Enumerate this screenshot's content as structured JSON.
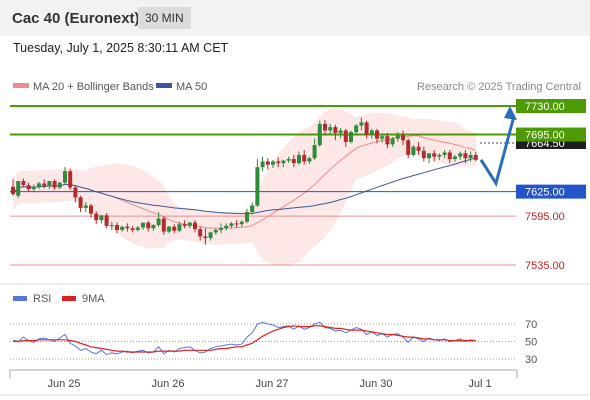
{
  "header": {
    "title": "Cac 40 (Euronext)",
    "timeframe": "30 MIN"
  },
  "datetime": "Tuesday, July 1, 2025 8:30:11 AM CET",
  "source": "Research © 2025 Trading Central",
  "colors": {
    "bollinger": "#f08a8a",
    "ma50": "#3b5998",
    "resistance": "#4e9a06",
    "support": "#2255cc",
    "lower": "#e89090",
    "arrow": "#2a6ebb",
    "rsi": "#5577dd",
    "rsi_ma": "#dd2222"
  },
  "chart_data": [
    {
      "type": "candlestick",
      "legend": [
        {
          "name": "MA 20 + Bollinger Bands",
          "color": "#f08a8a"
        },
        {
          "name": "MA 50",
          "color": "#3b5998"
        }
      ],
      "x_labels": [
        "Jun 25",
        "Jun 26",
        "Jun 27",
        "Jun 30",
        "Jul 1"
      ],
      "current_price_label": "7664.50",
      "levels": [
        {
          "value": 7730.0,
          "label": "7730.00",
          "kind": "resistance"
        },
        {
          "value": 7695.0,
          "label": "7695.00",
          "kind": "resistance"
        },
        {
          "value": 7625.0,
          "label": "7625.00",
          "kind": "support"
        },
        {
          "value": 7595.0,
          "label": "7595.00",
          "kind": "lower"
        },
        {
          "value": 7535.0,
          "label": "7535.00",
          "kind": "lower"
        }
      ],
      "forecast_path": [
        [
          0,
          7664
        ],
        [
          1,
          7645
        ],
        [
          2,
          7730
        ]
      ],
      "candles": [
        [
          7631,
          7640,
          7622,
          7620
        ],
        [
          7620,
          7625,
          7638,
          7617
        ],
        [
          7638,
          7641,
          7633,
          7630
        ],
        [
          7633,
          7636,
          7628,
          7625
        ],
        [
          7628,
          7634,
          7631,
          7624
        ],
        [
          7631,
          7637,
          7635,
          7628
        ],
        [
          7635,
          7640,
          7632,
          7629
        ],
        [
          7632,
          7636,
          7638,
          7628
        ],
        [
          7638,
          7640,
          7630,
          7627
        ],
        [
          7630,
          7637,
          7636,
          7628
        ],
        [
          7636,
          7655,
          7650,
          7633
        ],
        [
          7650,
          7653,
          7630,
          7627
        ],
        [
          7630,
          7633,
          7618,
          7612
        ],
        [
          7618,
          7620,
          7605,
          7600
        ],
        [
          7605,
          7612,
          7608,
          7600
        ],
        [
          7608,
          7610,
          7598,
          7593
        ],
        [
          7598,
          7601,
          7590,
          7585
        ],
        [
          7590,
          7595,
          7596,
          7586
        ],
        [
          7596,
          7599,
          7583,
          7580
        ],
        [
          7583,
          7588,
          7584,
          7578
        ],
        [
          7584,
          7587,
          7578,
          7574
        ],
        [
          7578,
          7583,
          7582,
          7576
        ],
        [
          7582,
          7586,
          7580,
          7576
        ],
        [
          7580,
          7583,
          7578,
          7575
        ],
        [
          7578,
          7583,
          7581,
          7576
        ],
        [
          7581,
          7585,
          7587,
          7578
        ],
        [
          7587,
          7589,
          7580,
          7576
        ],
        [
          7580,
          7585,
          7584,
          7577
        ],
        [
          7584,
          7600,
          7592,
          7582
        ],
        [
          7592,
          7595,
          7576,
          7572
        ],
        [
          7576,
          7583,
          7582,
          7574
        ],
        [
          7582,
          7585,
          7577,
          7574
        ],
        [
          7577,
          7588,
          7585,
          7575
        ],
        [
          7585,
          7590,
          7583,
          7580
        ],
        [
          7583,
          7588,
          7587,
          7580
        ],
        [
          7587,
          7590,
          7579,
          7575
        ],
        [
          7579,
          7582,
          7570,
          7565
        ],
        [
          7570,
          7580,
          7568,
          7560
        ],
        [
          7568,
          7576,
          7575,
          7565
        ],
        [
          7575,
          7580,
          7578,
          7572
        ],
        [
          7578,
          7586,
          7580,
          7574
        ],
        [
          7580,
          7586,
          7583,
          7577
        ],
        [
          7583,
          7588,
          7586,
          7580
        ],
        [
          7586,
          7590,
          7585,
          7581
        ],
        [
          7585,
          7590,
          7588,
          7582
        ],
        [
          7588,
          7604,
          7600,
          7586
        ],
        [
          7600,
          7612,
          7608,
          7597
        ],
        [
          7608,
          7665,
          7655,
          7606
        ],
        [
          7655,
          7668,
          7662,
          7650
        ],
        [
          7662,
          7666,
          7658,
          7652
        ],
        [
          7658,
          7664,
          7662,
          7654
        ],
        [
          7662,
          7667,
          7660,
          7655
        ],
        [
          7660,
          7664,
          7663,
          7655
        ],
        [
          7663,
          7668,
          7665,
          7660
        ],
        [
          7665,
          7670,
          7660,
          7655
        ],
        [
          7660,
          7674,
          7670,
          7658
        ],
        [
          7670,
          7676,
          7662,
          7658
        ],
        [
          7662,
          7668,
          7666,
          7659
        ],
        [
          7666,
          7690,
          7682,
          7664
        ],
        [
          7682,
          7712,
          7708,
          7680
        ],
        [
          7708,
          7713,
          7700,
          7694
        ],
        [
          7700,
          7708,
          7704,
          7696
        ],
        [
          7704,
          7707,
          7697,
          7688
        ],
        [
          7697,
          7703,
          7700,
          7690
        ],
        [
          7700,
          7702,
          7686,
          7680
        ],
        [
          7686,
          7700,
          7698,
          7684
        ],
        [
          7698,
          7708,
          7706,
          7694
        ],
        [
          7706,
          7716,
          7710,
          7700
        ],
        [
          7710,
          7712,
          7695,
          7690
        ],
        [
          7695,
          7702,
          7700,
          7690
        ],
        [
          7700,
          7702,
          7690,
          7684
        ],
        [
          7690,
          7695,
          7693,
          7685
        ],
        [
          7693,
          7697,
          7683,
          7678
        ],
        [
          7683,
          7692,
          7690,
          7680
        ],
        [
          7690,
          7698,
          7694,
          7686
        ],
        [
          7694,
          7700,
          7688,
          7682
        ],
        [
          7688,
          7690,
          7670,
          7666
        ],
        [
          7670,
          7682,
          7680,
          7668
        ],
        [
          7680,
          7686,
          7675,
          7670
        ],
        [
          7675,
          7680,
          7666,
          7662
        ],
        [
          7666,
          7670,
          7672,
          7660
        ],
        [
          7672,
          7676,
          7668,
          7662
        ],
        [
          7668,
          7672,
          7670,
          7664
        ],
        [
          7670,
          7676,
          7673,
          7666
        ],
        [
          7673,
          7676,
          7665,
          7660
        ],
        [
          7665,
          7670,
          7668,
          7662
        ],
        [
          7668,
          7674,
          7672,
          7664
        ],
        [
          7672,
          7676,
          7666,
          7660
        ],
        [
          7666,
          7674,
          7670,
          7662
        ],
        [
          7670,
          7674,
          7664,
          7662
        ]
      ]
    },
    {
      "type": "line",
      "legend": [
        {
          "name": "RSI",
          "color": "#5577dd"
        },
        {
          "name": "9MA",
          "color": "#dd2222"
        }
      ],
      "ylim": [
        20,
        80
      ],
      "y_ticks": [
        70,
        50,
        30
      ],
      "rsi": [
        52,
        50,
        55,
        51,
        49,
        53,
        54,
        52,
        50,
        54,
        58,
        48,
        45,
        40,
        42,
        38,
        36,
        40,
        35,
        37,
        36,
        38,
        39,
        37,
        39,
        40,
        37,
        38,
        44,
        36,
        40,
        38,
        42,
        43,
        44,
        40,
        37,
        38,
        42,
        44,
        45,
        46,
        47,
        46,
        47,
        55,
        60,
        70,
        72,
        70,
        69,
        66,
        67,
        68,
        64,
        68,
        64,
        66,
        70,
        72,
        66,
        65,
        62,
        63,
        60,
        63,
        66,
        64,
        58,
        61,
        57,
        59,
        55,
        58,
        59,
        55,
        49,
        55,
        53,
        50,
        54,
        52,
        51,
        53,
        50,
        51,
        53,
        50,
        52,
        51
      ],
      "rsi_ma": [
        50,
        50,
        51,
        51,
        51,
        52,
        52,
        52,
        52,
        52,
        52,
        51,
        50,
        48,
        46,
        44,
        43,
        42,
        41,
        40,
        39,
        39,
        38,
        38,
        38,
        38,
        38,
        38,
        39,
        39,
        39,
        39,
        39,
        40,
        40,
        40,
        40,
        40,
        40,
        41,
        42,
        42,
        43,
        44,
        44,
        46,
        48,
        52,
        56,
        59,
        62,
        64,
        66,
        67,
        68,
        67,
        67,
        67,
        68,
        68,
        67,
        66,
        65,
        65,
        64,
        63,
        63,
        63,
        62,
        61,
        60,
        59,
        58,
        58,
        57,
        56,
        55,
        55,
        54,
        53,
        53,
        52,
        52,
        52,
        51,
        51,
        51,
        51,
        51,
        51
      ]
    }
  ]
}
